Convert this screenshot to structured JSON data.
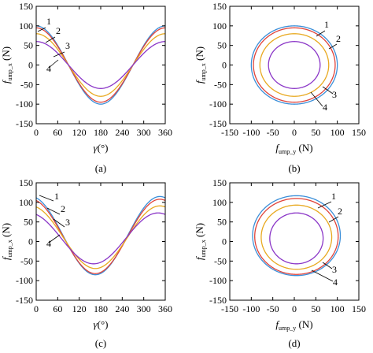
{
  "figure": {
    "colors": {
      "1": "#3b8fd9",
      "2": "#e0433a",
      "3": "#e8a91f",
      "4": "#8a35c7"
    }
  },
  "chart_data": [
    {
      "id": "a",
      "type": "line",
      "panel_label": "(a)",
      "xlabel": {
        "main": "γ",
        "unit": "(°)"
      },
      "ylabel": {
        "main": "f",
        "sub": "ump_x",
        "unit": "(N)"
      },
      "xlim": [
        0,
        360
      ],
      "ylim": [
        -150,
        150
      ],
      "xticks": [
        0,
        60,
        120,
        180,
        240,
        300,
        360
      ],
      "yticks": [
        -150,
        -100,
        -50,
        0,
        50,
        100,
        150
      ],
      "series": [
        {
          "name": "1",
          "amplitude": 100,
          "phase_deg": 180
        },
        {
          "name": "2",
          "amplitude": 95,
          "phase_deg": 180
        },
        {
          "name": "3",
          "amplitude": 80,
          "phase_deg": 180
        },
        {
          "name": "4",
          "amplitude": 60,
          "phase_deg": 180
        }
      ]
    },
    {
      "id": "b",
      "type": "line",
      "panel_label": "(b)",
      "xlabel": {
        "main": "f",
        "sub": "ump_y",
        "unit": "(N)"
      },
      "ylabel": {
        "main": "f",
        "sub": "ump_x",
        "unit": "(N)"
      },
      "xlim": [
        -150,
        150
      ],
      "ylim": [
        -150,
        150
      ],
      "xticks": [
        -150,
        -100,
        -50,
        0,
        50,
        100,
        150
      ],
      "yticks": [
        -150,
        -100,
        -50,
        0,
        50,
        100,
        150
      ],
      "series": [
        {
          "name": "1",
          "cx": 0,
          "cy": 0,
          "rx": 100,
          "ry": 100
        },
        {
          "name": "2",
          "cx": 0,
          "cy": 0,
          "rx": 95,
          "ry": 95
        },
        {
          "name": "3",
          "cx": 0,
          "cy": 0,
          "rx": 80,
          "ry": 80
        },
        {
          "name": "4",
          "cx": 0,
          "cy": 0,
          "rx": 60,
          "ry": 60
        }
      ]
    },
    {
      "id": "c",
      "type": "line",
      "panel_label": "(c)",
      "xlabel": {
        "main": "γ",
        "unit": "(°)"
      },
      "ylabel": {
        "main": "f",
        "sub": "ump_x",
        "unit": "(N)"
      },
      "xlim": [
        0,
        360
      ],
      "ylim": [
        -150,
        150
      ],
      "xticks": [
        0,
        60,
        120,
        180,
        240,
        300,
        360
      ],
      "yticks": [
        -150,
        -100,
        -50,
        0,
        50,
        100,
        150
      ],
      "series": [
        {
          "name": "1",
          "amplitude": 100,
          "offset": 15,
          "phase_deg": 165
        },
        {
          "name": "2",
          "amplitude": 95,
          "offset": 13,
          "phase_deg": 165
        },
        {
          "name": "3",
          "amplitude": 80,
          "offset": 11,
          "phase_deg": 165
        },
        {
          "name": "4",
          "amplitude": 65,
          "offset": 8,
          "phase_deg": 160
        }
      ]
    },
    {
      "id": "d",
      "type": "line",
      "panel_label": "(d)",
      "xlabel": {
        "main": "f",
        "sub": "ump_y",
        "unit": "(N)"
      },
      "ylabel": {
        "main": "f",
        "sub": "ump_x",
        "unit": "(N)"
      },
      "xlim": [
        -150,
        150
      ],
      "ylim": [
        -150,
        150
      ],
      "xticks": [
        -150,
        -100,
        -50,
        0,
        50,
        100,
        150
      ],
      "yticks": [
        -150,
        -100,
        -50,
        0,
        50,
        100,
        150
      ],
      "series": [
        {
          "name": "1",
          "cx": 5,
          "cy": 15,
          "rx": 102,
          "ry": 102
        },
        {
          "name": "2",
          "cx": 5,
          "cy": 13,
          "rx": 97,
          "ry": 97
        },
        {
          "name": "3",
          "cx": 5,
          "cy": 11,
          "rx": 82,
          "ry": 82
        },
        {
          "name": "4",
          "cx": 5,
          "cy": 8,
          "rx": 62,
          "ry": 65
        }
      ]
    }
  ]
}
